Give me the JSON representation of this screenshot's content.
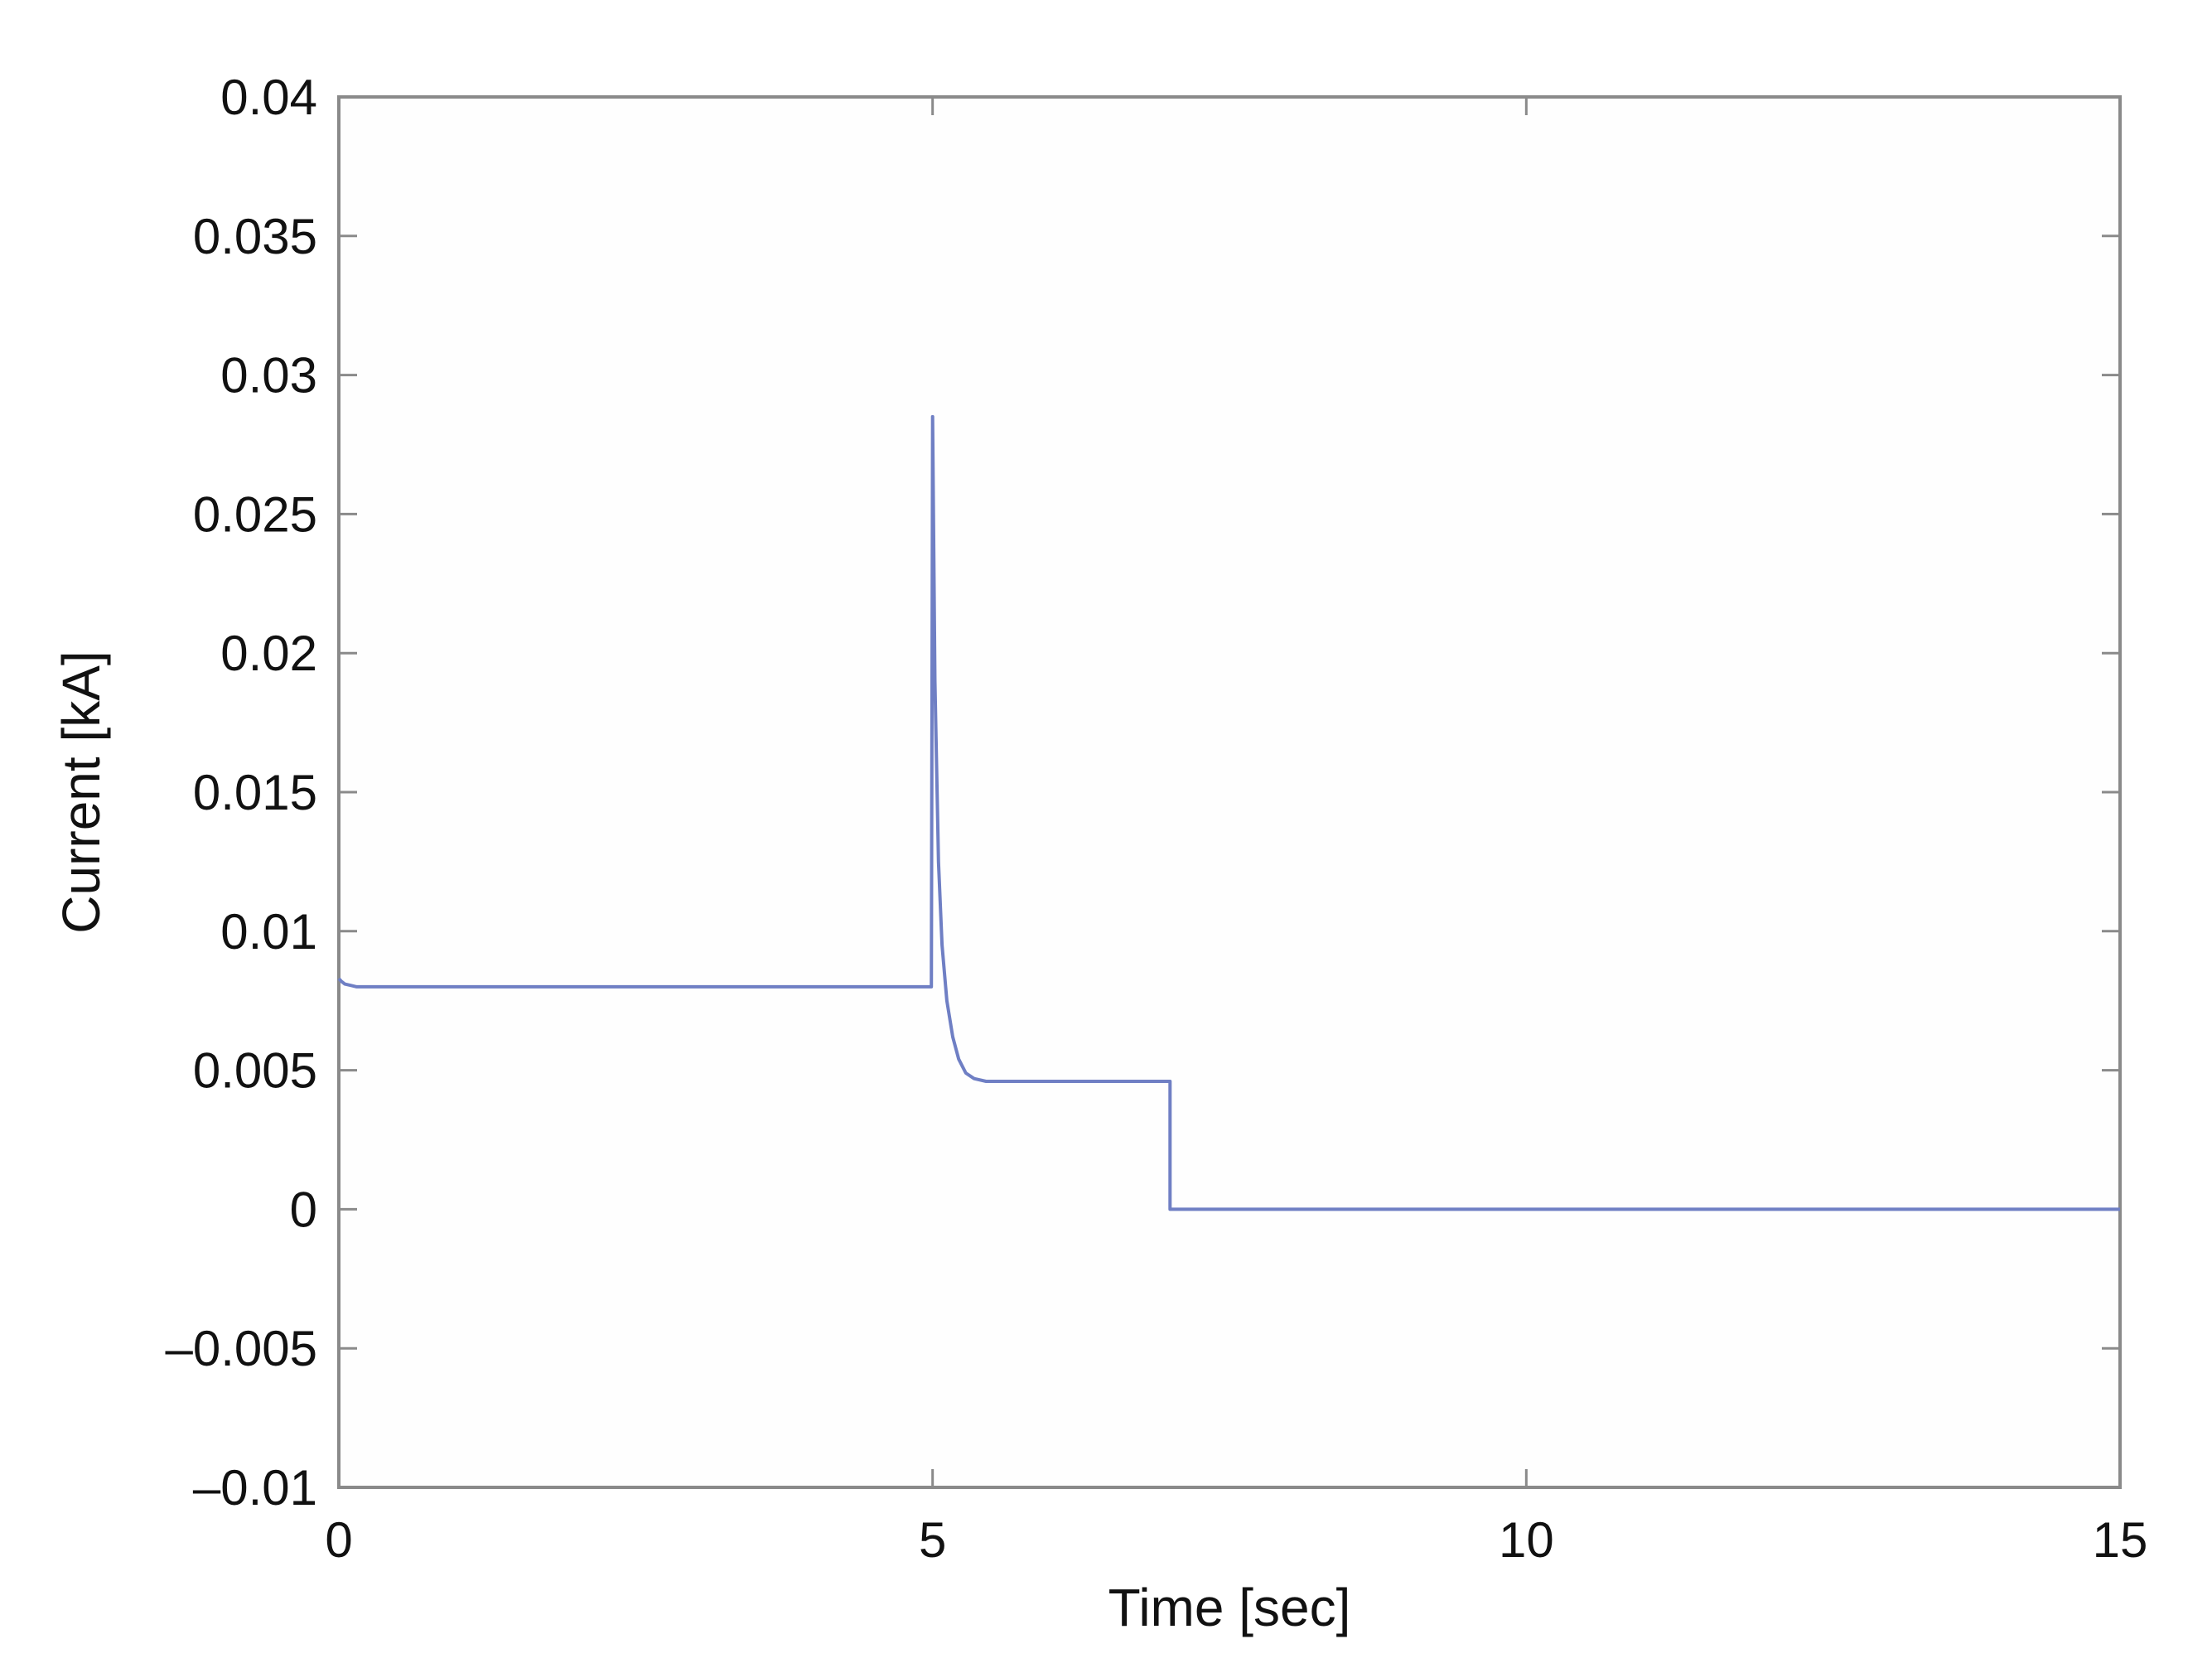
{
  "chart_data": {
    "type": "line",
    "title": "",
    "xlabel": "Time [sec]",
    "ylabel": "Current [kA]",
    "xlim": [
      0,
      15
    ],
    "ylim": [
      -0.01,
      0.04
    ],
    "x_ticks": [
      0,
      5,
      10,
      15
    ],
    "x_tick_labels": [
      "0",
      "5",
      "10",
      "15"
    ],
    "y_ticks": [
      -0.01,
      -0.005,
      0,
      0.005,
      0.01,
      0.015,
      0.02,
      0.025,
      0.03,
      0.035,
      0.04
    ],
    "y_tick_labels": [
      "–0.01",
      "–0.005",
      "0",
      "0.005",
      "0.01",
      "0.015",
      "0.02",
      "0.025",
      "0.03",
      "0.035",
      "0.04"
    ],
    "grid": false,
    "legend": "none",
    "line_color": "#6f7fc4",
    "series": [
      {
        "x": [
          0,
          0.02,
          0.05,
          0.1,
          0.15,
          0.2,
          0.3,
          0.5,
          1,
          2,
          3,
          4,
          4.99,
          5.0,
          5.02,
          5.05,
          5.08,
          5.12,
          5.17,
          5.22,
          5.28,
          5.35,
          5.45,
          5.6,
          5.8,
          6,
          6.5,
          7.0,
          7.0,
          7.5,
          8,
          10,
          12,
          14,
          15
        ],
        "y": [
          0.0083,
          0.0082,
          0.0081,
          0.00805,
          0.008,
          0.008,
          0.008,
          0.008,
          0.008,
          0.008,
          0.008,
          0.008,
          0.008,
          0.0285,
          0.019,
          0.0125,
          0.0095,
          0.0075,
          0.0062,
          0.0054,
          0.0049,
          0.0047,
          0.0046,
          0.0046,
          0.0046,
          0.0046,
          0.0046,
          0.0046,
          0.0,
          0.0,
          0.0,
          0.0,
          0.0,
          0.0,
          0.0
        ]
      }
    ]
  }
}
